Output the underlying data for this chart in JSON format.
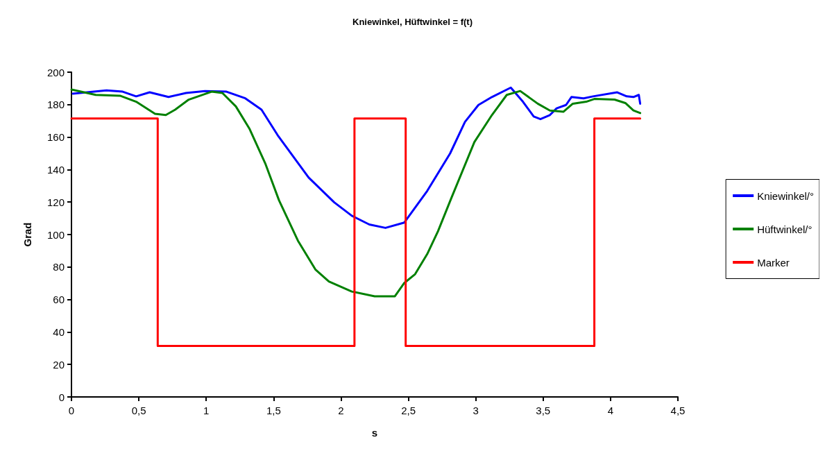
{
  "chart_data": {
    "type": "line",
    "title": "Kniewinkel, Hüftwinkel = f(t)",
    "xlabel": "s",
    "ylabel": "Grad",
    "xlim": [
      0,
      4.5
    ],
    "xticks": [
      0,
      {
        "value": 0.5,
        "label": "0,5"
      },
      1,
      {
        "value": 1.5,
        "label": "1,5"
      },
      2,
      {
        "value": 2.5,
        "label": "2,5"
      },
      3,
      {
        "value": 3.5,
        "label": "3,5"
      },
      4,
      {
        "value": 4.5,
        "label": "4,5"
      }
    ],
    "ylim": [
      0,
      200
    ],
    "yticks": [
      0,
      20,
      40,
      60,
      80,
      100,
      120,
      140,
      160,
      180,
      200
    ],
    "grid": false,
    "legend": "right",
    "marker": "none",
    "line_style": "solid",
    "series": [
      {
        "name": "Kniewinkel/°",
        "color": "#0000ff",
        "x": [
          0.01,
          0.26,
          0.38,
          0.48,
          0.58,
          0.72,
          0.85,
          0.99,
          1.15,
          1.29,
          1.41,
          1.53,
          1.76,
          1.95,
          2.08,
          2.21,
          2.33,
          2.47,
          2.64,
          2.81,
          2.92,
          3.02,
          3.12,
          3.26,
          3.35,
          3.43,
          3.48,
          3.55,
          3.6,
          3.67,
          3.71,
          3.8,
          3.87,
          4.05,
          4.12,
          4.17,
          4.21,
          4.22
        ],
        "values": [
          186.8,
          188.8,
          188,
          185.1,
          187.6,
          184.7,
          187.2,
          188.4,
          188,
          183.9,
          176.9,
          161.2,
          135.1,
          119.8,
          111.6,
          106.2,
          104.1,
          107.4,
          126.9,
          150,
          169.4,
          179.8,
          184.7,
          190.5,
          181.8,
          172.7,
          171.1,
          173.6,
          177.7,
          179.8,
          184.7,
          183.9,
          185.1,
          187.6,
          185.1,
          184.7,
          186,
          180.6
        ]
      },
      {
        "name": "Hüftwinkel/°",
        "color": "#008000",
        "x": [
          0,
          0.18,
          0.36,
          0.48,
          0.62,
          0.7,
          0.77,
          0.87,
          1.04,
          1.12,
          1.22,
          1.32,
          1.44,
          1.54,
          1.68,
          1.81,
          1.91,
          2.08,
          2.25,
          2.4,
          2.47,
          2.55,
          2.64,
          2.72,
          2.82,
          2.99,
          3.12,
          3.23,
          3.33,
          3.46,
          3.55,
          3.65,
          3.72,
          3.82,
          3.88,
          4.03,
          4.11,
          4.17,
          4.22
        ],
        "values": [
          189.3,
          186,
          185.5,
          181.8,
          174.4,
          173.6,
          176.9,
          183.1,
          188,
          187.2,
          178.9,
          165.3,
          143.4,
          121.1,
          96.3,
          78.5,
          71.1,
          64.9,
          62,
          62,
          70.2,
          75.6,
          88,
          102.1,
          122.7,
          157,
          173.6,
          186,
          188.4,
          180.6,
          176.4,
          175.6,
          180.6,
          181.8,
          183.5,
          183.1,
          181,
          176.4,
          174.8
        ]
      },
      {
        "name": "Marker",
        "color": "#ff0000",
        "x": [
          0,
          0.64,
          0.64,
          2.1,
          2.1,
          2.48,
          2.48,
          3.88,
          3.88,
          4.22
        ],
        "values": [
          171.5,
          171.5,
          31.4,
          31.4,
          171.5,
          171.5,
          31.4,
          31.4,
          171.5,
          171.5
        ]
      }
    ]
  }
}
